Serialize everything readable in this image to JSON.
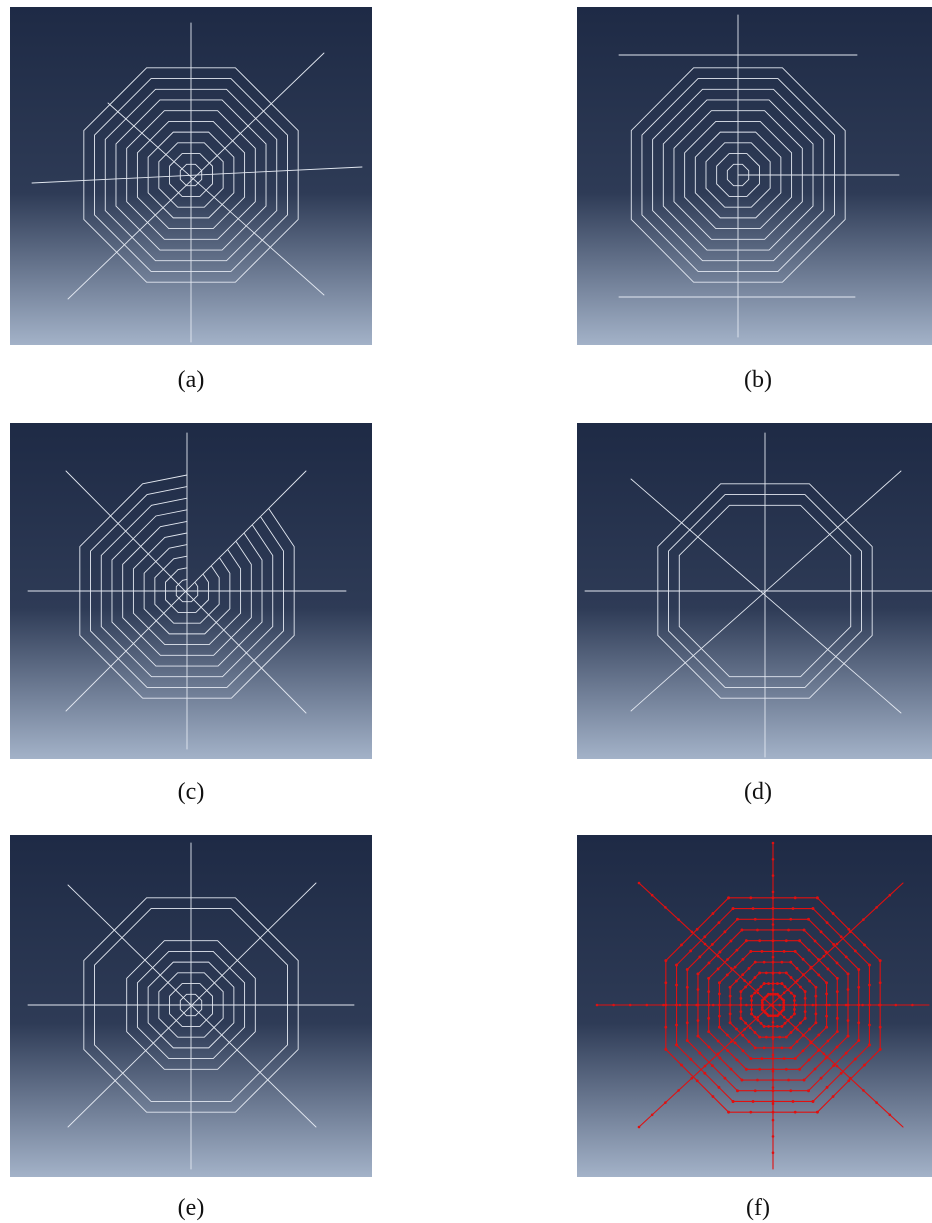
{
  "panels": [
    {
      "id": "a",
      "caption": "(a)",
      "variant": "full-spiderweb"
    },
    {
      "id": "b",
      "caption": "(b)",
      "variant": "left-edge-converged"
    },
    {
      "id": "c",
      "caption": "(c)",
      "variant": "sector-missing"
    },
    {
      "id": "d",
      "caption": "(d)",
      "variant": "inner-rings-missing"
    },
    {
      "id": "e",
      "caption": "(e)",
      "variant": "middle-rings-missing"
    },
    {
      "id": "f",
      "caption": "(f)",
      "variant": "meshed-with-nodes"
    }
  ],
  "colors": {
    "bg_top": "#1e2a45",
    "bg_mid": "#2e3b56",
    "bg_bottom": "#a3b2c8",
    "wire": "#e3e8f1",
    "mesh": "#e01010"
  }
}
